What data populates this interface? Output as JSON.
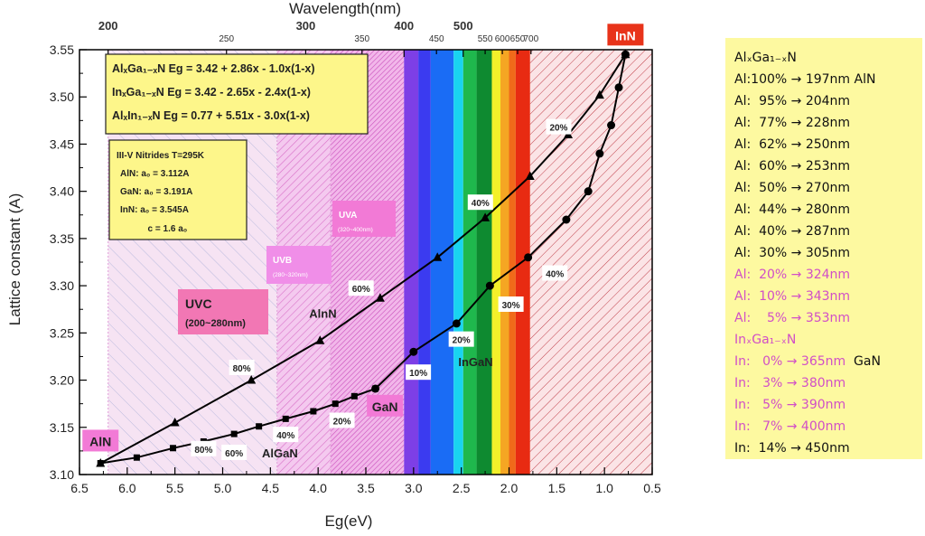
{
  "chart_data": {
    "type": "line",
    "xlabel": "Eg(eV)",
    "ylabel": "Lattice constant (A)",
    "top_xlabel": "Wavelength(nm)",
    "xlim": [
      6.5,
      0.5
    ],
    "ylim": [
      3.1,
      3.55
    ],
    "x_ticks": [
      6.5,
      6.0,
      5.5,
      5.0,
      4.5,
      4.0,
      3.5,
      3.0,
      2.5,
      2.0,
      1.5,
      1.0,
      0.5
    ],
    "x_tick_labels": [
      "6.5",
      "6.0",
      "5.5",
      "5.0",
      "4.5",
      "4.0",
      "3.5",
      "3.0",
      "2.5",
      "2.0",
      "1.5",
      "1.0",
      "0.5"
    ],
    "y_ticks": [
      3.1,
      3.15,
      3.2,
      3.25,
      3.3,
      3.35,
      3.4,
      3.45,
      3.5,
      3.55
    ],
    "y_tick_labels": [
      "3.10",
      "3.15",
      "3.20",
      "3.25",
      "3.30",
      "3.35",
      "3.40",
      "3.45",
      "3.50",
      "3.55"
    ],
    "top_ticks": [
      {
        "label": "200",
        "eV": 6.2,
        "major": true
      },
      {
        "label": "250",
        "eV": 4.96,
        "major": false
      },
      {
        "label": "300",
        "eV": 4.13,
        "major": true
      },
      {
        "label": "350",
        "eV": 3.54,
        "major": false
      },
      {
        "label": "400",
        "eV": 3.1,
        "major": true
      },
      {
        "label": "450",
        "eV": 2.76,
        "major": false
      },
      {
        "label": "500",
        "eV": 2.48,
        "major": true
      },
      {
        "label": "550",
        "eV": 2.25,
        "major": false
      },
      {
        "label": "600",
        "eV": 2.07,
        "major": false
      },
      {
        "label": "650",
        "eV": 1.91,
        "major": false
      },
      {
        "label": "700",
        "eV": 1.77,
        "major": false
      }
    ],
    "series": [
      {
        "name": "AlGaN",
        "marker": "square",
        "x": [
          6.28,
          5.9,
          5.52,
          5.2,
          4.88,
          4.62,
          4.34,
          4.05,
          3.82,
          3.62,
          3.4
        ],
        "y": [
          3.112,
          3.118,
          3.128,
          3.135,
          3.143,
          3.151,
          3.159,
          3.167,
          3.175,
          3.183,
          3.191
        ]
      },
      {
        "name": "InGaN",
        "marker": "circle",
        "x": [
          3.4,
          3.0,
          2.55,
          2.2,
          1.8,
          1.4,
          1.17,
          1.05,
          0.93,
          0.85,
          0.78
        ],
        "y": [
          3.191,
          3.23,
          3.26,
          3.3,
          3.33,
          3.37,
          3.4,
          3.44,
          3.47,
          3.51,
          3.545
        ]
      },
      {
        "name": "AlInN",
        "marker": "triangle",
        "x": [
          6.28,
          5.5,
          4.7,
          3.98,
          3.35,
          2.75,
          2.25,
          1.78,
          1.38,
          1.05,
          0.78
        ],
        "y": [
          3.112,
          3.155,
          3.2,
          3.242,
          3.287,
          3.33,
          3.372,
          3.416,
          3.46,
          3.502,
          3.545
        ]
      }
    ],
    "regions": [
      {
        "label": "UVC",
        "range": "(200~280nm)",
        "from": 6.2,
        "to": 4.43
      },
      {
        "label": "UVB",
        "range": "(280~320nm)",
        "from": 4.43,
        "to": 3.87
      },
      {
        "label": "UVA",
        "range": "(320~400nm)",
        "from": 3.87,
        "to": 3.1
      }
    ],
    "spectrum": [
      {
        "from": 3.1,
        "to": 2.95,
        "color": "#7d3fe6"
      },
      {
        "from": 2.95,
        "to": 2.82,
        "color": "#3b3bf0"
      },
      {
        "from": 2.82,
        "to": 2.58,
        "color": "#1a6cf5"
      },
      {
        "from": 2.58,
        "to": 2.48,
        "color": "#19d4f0"
      },
      {
        "from": 2.48,
        "to": 2.34,
        "color": "#1fb84d"
      },
      {
        "from": 2.34,
        "to": 2.18,
        "color": "#0e8a30"
      },
      {
        "from": 2.18,
        "to": 2.09,
        "color": "#f4f02a"
      },
      {
        "from": 2.09,
        "to": 2.0,
        "color": "#f5a623"
      },
      {
        "from": 2.0,
        "to": 1.93,
        "color": "#f06a1a"
      },
      {
        "from": 1.93,
        "to": 1.78,
        "color": "#e82b12"
      }
    ],
    "pct_labels": [
      {
        "text": "80%",
        "x": 5.2,
        "y": 3.127
      },
      {
        "text": "60%",
        "x": 4.88,
        "y": 3.123
      },
      {
        "text": "40%",
        "x": 4.34,
        "y": 3.142
      },
      {
        "text": "20%",
        "x": 3.75,
        "y": 3.157
      },
      {
        "text": "80%",
        "x": 4.8,
        "y": 3.213
      },
      {
        "text": "60%",
        "x": 3.55,
        "y": 3.297
      },
      {
        "text": "40%",
        "x": 2.3,
        "y": 3.388
      },
      {
        "text": "20%",
        "x": 1.48,
        "y": 3.468
      },
      {
        "text": "10%",
        "x": 2.95,
        "y": 3.208
      },
      {
        "text": "20%",
        "x": 2.5,
        "y": 3.243
      },
      {
        "text": "30%",
        "x": 1.98,
        "y": 3.28
      },
      {
        "text": "40%",
        "x": 1.52,
        "y": 3.313
      }
    ],
    "material_labels": [
      {
        "text": "AlN",
        "x": 6.28,
        "y": 3.135,
        "style": "pink"
      },
      {
        "text": "GaN",
        "x": 3.3,
        "y": 3.172,
        "style": "pink"
      },
      {
        "text": "InN",
        "x": 0.78,
        "y": 3.565,
        "style": "red"
      },
      {
        "text": "AlGaN",
        "x": 4.4,
        "y": 3.118,
        "style": "plain"
      },
      {
        "text": "AlnN",
        "x": 3.95,
        "y": 3.266,
        "style": "plain"
      },
      {
        "text": "InGaN",
        "x": 2.35,
        "y": 3.215,
        "style": "plain"
      }
    ],
    "equations": [
      "AlₓGa₁₋ₓN  Eg = 3.42 + 2.86x - 1.0x(1-x)",
      "InₓGa₁₋ₓN  Eg = 3.42 -  2.65x - 2.4x(1-x)",
      "AlₓIn₁₋ₓN   Eg = 0.77 + 5.51x - 3.0x(1-x)"
    ],
    "nitride_box": [
      "III-V Nitrides T=295K",
      "AlN:  a₀ = 3.112A",
      "GaN:  a₀ = 3.191A",
      "InN:  a₀ = 3.545A",
      "           c = 1.6 a₀"
    ]
  },
  "side_panel": {
    "title": "AlₓGa₁₋ₓN",
    "lines": [
      {
        "text": "Al:100% → 197nm AlN",
        "highlight": false
      },
      {
        "text": "Al:  95% → 204nm",
        "highlight": false
      },
      {
        "text": "Al:  77% → 228nm",
        "highlight": false
      },
      {
        "text": "Al:  62% → 250nm",
        "highlight": false
      },
      {
        "text": "Al:  60% → 253nm",
        "highlight": false
      },
      {
        "text": "Al:  50% → 270nm",
        "highlight": false
      },
      {
        "text": "Al:  44% → 280nm",
        "highlight": false
      },
      {
        "text": "Al:  40% → 287nm",
        "highlight": false
      },
      {
        "text": "Al:  30% → 305nm",
        "highlight": false
      },
      {
        "text": "Al:  20% → 324nm",
        "highlight": true
      },
      {
        "text": "Al:  10% → 343nm",
        "highlight": true
      },
      {
        "text": "Al:    5% → 353nm",
        "highlight": true
      }
    ],
    "title2": "InₓGa₁₋ₓN",
    "lines2": [
      {
        "text": "In:   0% → 365nm",
        "suffix": "  GaN",
        "highlight": true
      },
      {
        "text": "In:   3% → 380nm",
        "highlight": true
      },
      {
        "text": "In:   5% → 390nm",
        "highlight": true
      },
      {
        "text": "In:   7% → 400nm",
        "highlight": true
      },
      {
        "text": "In:  14% → 450nm",
        "highlight": false
      }
    ]
  },
  "colors": {
    "uvc_label_bg": "#f277b4",
    "uv_label_bg": "#f08ee8",
    "pink_label_bg": "#f27ad6",
    "innlabel_bg": "#e8331a",
    "yellow_box": "#fdf68a",
    "hatch_pink": "#d870c8",
    "hatch_red": "#c0404a"
  }
}
